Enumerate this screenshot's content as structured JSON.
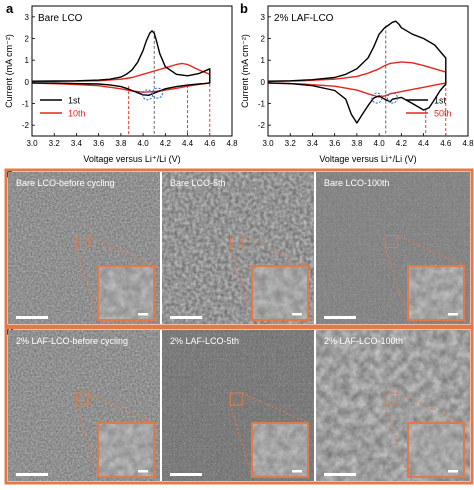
{
  "panels": {
    "a": {
      "letter": "a"
    },
    "b": {
      "letter": "b"
    },
    "c": {
      "letter": "c"
    },
    "d": {
      "letter": "d"
    }
  },
  "chart_data": [
    {
      "type": "line",
      "panel": "a",
      "title": "Bare LCO",
      "xlabel": "Voltage versus Li⁺/Li (V)",
      "ylabel": "Current (mA cm⁻²)",
      "xlim": [
        3.0,
        4.8
      ],
      "ylim": [
        -2.5,
        3.5
      ],
      "xticks": [
        "3.0",
        "3.2",
        "3.4",
        "3.6",
        "3.8",
        "4.0",
        "4.2",
        "4.4",
        "4.6",
        "4.8"
      ],
      "yticks": [
        "-2",
        "-1",
        "0",
        "1",
        "2",
        "3"
      ],
      "series": [
        {
          "name": "1st",
          "color": "#000000",
          "x": [
            3.0,
            3.2,
            3.4,
            3.6,
            3.7,
            3.8,
            3.85,
            3.9,
            3.95,
            4.0,
            4.03,
            4.06,
            4.08,
            4.1,
            4.12,
            4.15,
            4.2,
            4.3,
            4.4,
            4.5,
            4.6,
            4.6,
            4.55,
            4.5,
            4.4,
            4.3,
            4.2,
            4.1,
            4.05,
            4.0,
            3.95,
            3.9,
            3.85,
            3.8,
            3.7,
            3.6,
            3.4,
            3.2,
            3.0
          ],
          "y": [
            0.03,
            0.04,
            0.05,
            0.08,
            0.12,
            0.22,
            0.35,
            0.55,
            0.9,
            1.45,
            1.9,
            2.25,
            2.35,
            2.25,
            1.9,
            1.3,
            0.7,
            0.35,
            0.28,
            0.38,
            0.6,
            -0.05,
            -0.08,
            -0.1,
            -0.15,
            -0.22,
            -0.32,
            -0.52,
            -0.62,
            -0.6,
            -0.5,
            -0.4,
            -0.3,
            -0.22,
            -0.14,
            -0.1,
            -0.08,
            -0.06,
            -0.05
          ]
        },
        {
          "name": "10th",
          "color": "#e8261c",
          "x": [
            3.0,
            3.3,
            3.6,
            3.8,
            3.9,
            4.0,
            4.1,
            4.2,
            4.3,
            4.35,
            4.4,
            4.5,
            4.6,
            4.6,
            4.5,
            4.4,
            4.3,
            4.2,
            4.1,
            4.0,
            3.9,
            3.8,
            3.6,
            3.3,
            3.0
          ],
          "y": [
            0.02,
            0.03,
            0.05,
            0.12,
            0.2,
            0.35,
            0.5,
            0.65,
            0.8,
            0.85,
            0.8,
            0.55,
            0.35,
            -0.05,
            -0.12,
            -0.2,
            -0.3,
            -0.38,
            -0.45,
            -0.48,
            -0.42,
            -0.32,
            -0.18,
            -0.1,
            -0.06
          ]
        }
      ],
      "annotations": {
        "dashed_lines": [
          {
            "x": 4.1,
            "y_top": 2.35,
            "color": "#555555"
          },
          {
            "x": 3.87,
            "y_top": -0.2,
            "color": "#e8261c"
          },
          {
            "x": 4.4,
            "y_top": -0.15,
            "color": "#e8261c"
          },
          {
            "x": 4.6,
            "y_top": 0.6,
            "color": "#e8261c"
          }
        ],
        "circles": [
          {
            "x": 4.04,
            "y": -0.6
          },
          {
            "x": 4.13,
            "y": -0.52
          }
        ]
      },
      "legend": "bottom-left"
    },
    {
      "type": "line",
      "panel": "b",
      "title": "2% LAF-LCO",
      "xlabel": "Voltage versus Li⁺/Li (V)",
      "ylabel": "Current (mA cm⁻²)",
      "xlim": [
        3.0,
        4.8
      ],
      "ylim": [
        -2.5,
        3.5
      ],
      "xticks": [
        "3.0",
        "3.2",
        "3.4",
        "3.6",
        "3.8",
        "4.0",
        "4.2",
        "4.4",
        "4.6",
        "4.8"
      ],
      "yticks": [
        "-2",
        "-1",
        "0",
        "1",
        "2",
        "3"
      ],
      "series": [
        {
          "name": "1st",
          "color": "#000000",
          "x": [
            3.0,
            3.2,
            3.4,
            3.6,
            3.7,
            3.8,
            3.9,
            3.95,
            4.0,
            4.05,
            4.08,
            4.12,
            4.15,
            4.18,
            4.2,
            4.3,
            4.4,
            4.5,
            4.55,
            4.6,
            4.6,
            4.55,
            4.5,
            4.45,
            4.4,
            4.3,
            4.2,
            4.12,
            4.1,
            4.05,
            4.0,
            3.95,
            3.9,
            3.85,
            3.8,
            3.75,
            3.7,
            3.6,
            3.4,
            3.2,
            3.0
          ],
          "y": [
            0.03,
            0.05,
            0.1,
            0.2,
            0.35,
            0.6,
            1.1,
            1.6,
            2.2,
            2.5,
            2.6,
            2.75,
            2.8,
            2.65,
            2.5,
            2.2,
            2.0,
            1.7,
            1.4,
            1.1,
            -0.1,
            -0.4,
            -0.8,
            -1.2,
            -1.3,
            -1.0,
            -0.72,
            -0.8,
            -0.92,
            -0.8,
            -0.65,
            -0.75,
            -1.1,
            -1.5,
            -1.9,
            -1.5,
            -0.8,
            -0.4,
            -0.18,
            -0.08,
            -0.05
          ]
        },
        {
          "name": "50th",
          "color": "#e8261c",
          "x": [
            3.0,
            3.3,
            3.6,
            3.8,
            3.9,
            4.0,
            4.05,
            4.1,
            4.2,
            4.3,
            4.4,
            4.5,
            4.6,
            4.6,
            4.5,
            4.4,
            4.3,
            4.2,
            4.1,
            4.05,
            4.0,
            3.9,
            3.8,
            3.6,
            3.3,
            3.0
          ],
          "y": [
            0.02,
            0.05,
            0.12,
            0.25,
            0.4,
            0.6,
            0.75,
            0.85,
            0.92,
            0.88,
            0.75,
            0.6,
            0.45,
            -0.05,
            -0.15,
            -0.25,
            -0.35,
            -0.45,
            -0.55,
            -0.65,
            -0.7,
            -0.55,
            -0.38,
            -0.2,
            -0.1,
            -0.06
          ]
        }
      ],
      "annotations": {
        "dashed_lines": [
          {
            "x": 4.06,
            "y_top": 2.6,
            "color": "#555555"
          },
          {
            "x": 4.42,
            "y_top": -1.3,
            "color": "#e8261c"
          },
          {
            "x": 4.6,
            "y_top": 1.1,
            "color": "#e8261c"
          }
        ],
        "circles": [
          {
            "x": 3.98,
            "y": -0.75
          },
          {
            "x": 4.12,
            "y": -0.75
          }
        ]
      },
      "legend": "bottom-right"
    }
  ],
  "micrographs": {
    "c": [
      {
        "label": "Bare LCO-before cycling"
      },
      {
        "label": "Bare LCO-5th"
      },
      {
        "label": "Bare LCO-100th"
      }
    ],
    "d": [
      {
        "label": "2% LAF-LCO-before cycling"
      },
      {
        "label": "2% LAF-LCO-5th"
      },
      {
        "label": "2% LAF-LCO-100th"
      }
    ]
  },
  "colors": {
    "frame_orange": "#e07a4a",
    "series_black": "#000000",
    "series_red": "#e8261c",
    "circle_blue": "#2f6fd6"
  }
}
